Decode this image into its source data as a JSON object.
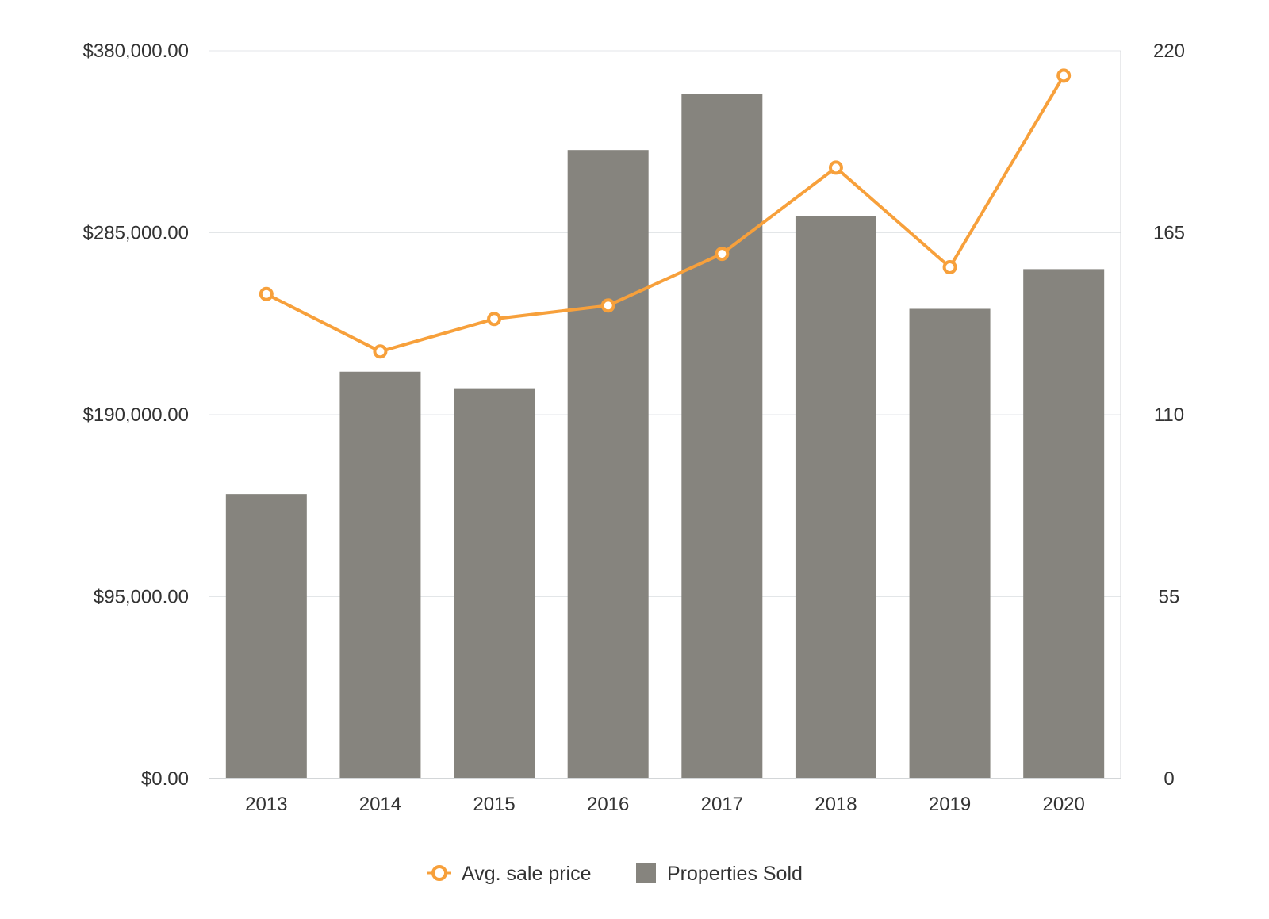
{
  "chart_data": {
    "type": "bar",
    "categories": [
      "2013",
      "2014",
      "2015",
      "2016",
      "2017",
      "2018",
      "2019",
      "2020"
    ],
    "series": [
      {
        "name": "Properties Sold",
        "type": "bar",
        "axis": "right",
        "values": [
          86,
          123,
          118,
          190,
          207,
          170,
          142,
          154
        ]
      },
      {
        "name": "Avg. sale price",
        "type": "line",
        "axis": "left",
        "values": [
          253000,
          223000,
          240000,
          247000,
          274000,
          319000,
          267000,
          367000
        ]
      }
    ],
    "y_left": {
      "ylim": [
        0,
        380000
      ],
      "ticks": [
        0,
        95000,
        190000,
        285000,
        380000
      ],
      "tick_labels": [
        "$0.00",
        "$95,000.00",
        "$190,000.00",
        "$285,000.00",
        "$380,000.00"
      ]
    },
    "y_right": {
      "ylim": [
        0,
        220
      ],
      "ticks": [
        0,
        55,
        110,
        165,
        220
      ],
      "tick_labels": [
        "0",
        "55",
        "110",
        "165",
        "220"
      ]
    },
    "title": "",
    "xlabel": "",
    "ylabel": "",
    "grid": true,
    "legend": {
      "placement": "bottom-center",
      "entries": [
        "Avg. sale price",
        "Properties Sold"
      ]
    },
    "colors": {
      "bar": "#86847e",
      "line": "#f7a03b",
      "grid": "#e3e6e8",
      "axis": "#d3d6d8",
      "text": "#333333"
    }
  }
}
